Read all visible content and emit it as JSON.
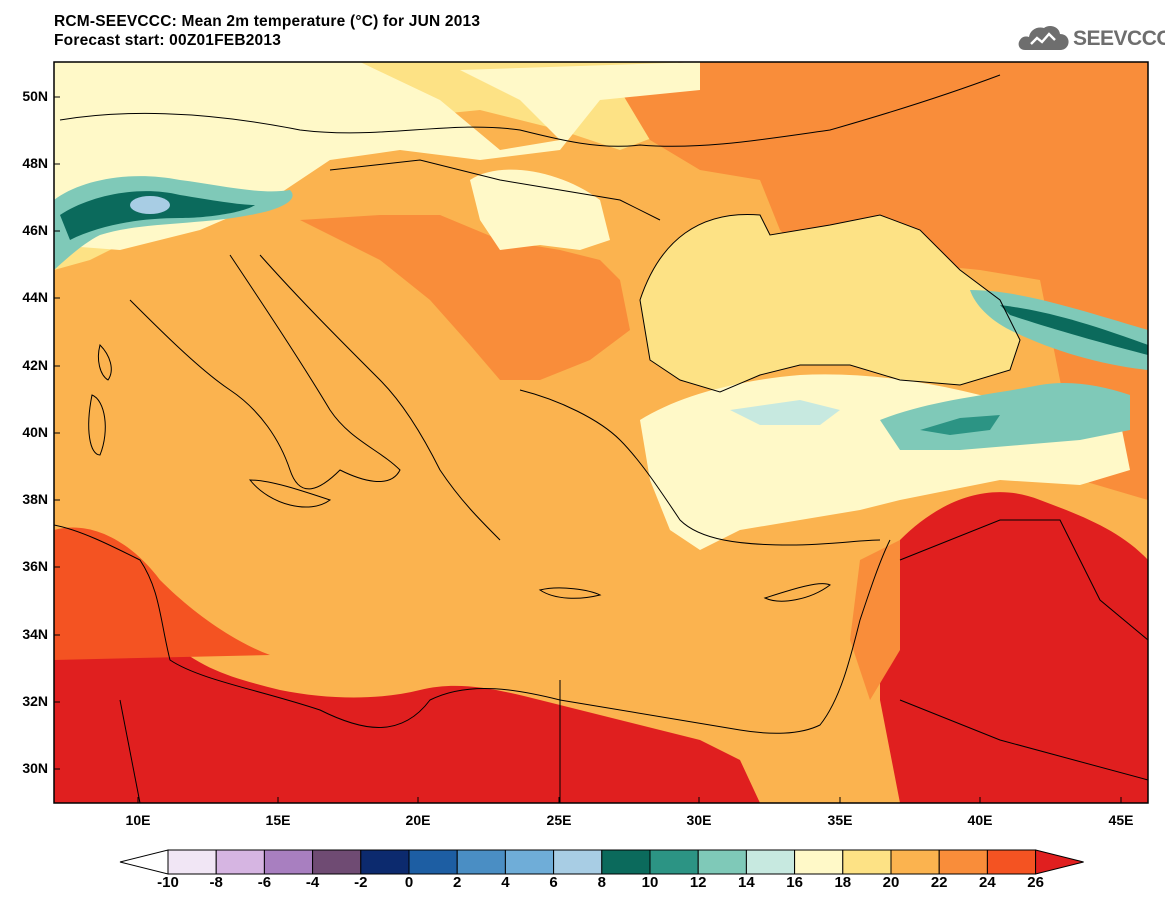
{
  "header": {
    "title_line1": "RCM-SEEVCCC: Mean 2m temperature (°C) for JUN 2013",
    "title_line2": "Forecast start: 00Z01FEB2013"
  },
  "logo": {
    "text": "SEEVCCC",
    "icon": "cloud-logo-icon"
  },
  "map": {
    "lat_labels": [
      "50N",
      "48N",
      "46N",
      "44N",
      "42N",
      "40N",
      "38N",
      "36N",
      "34N",
      "32N",
      "30N"
    ],
    "lon_labels": [
      "10E",
      "15E",
      "20E",
      "25E",
      "30E",
      "35E",
      "40E",
      "45E"
    ],
    "lat_range": [
      29,
      51
    ],
    "lon_range": [
      7,
      46
    ],
    "regions": [
      {
        "name": "background",
        "value": 21
      },
      {
        "name": "sahara",
        "value": 25
      },
      {
        "name": "arabia",
        "value": 25
      },
      {
        "name": "alps",
        "value": 11
      },
      {
        "name": "anatolia-plateau",
        "value": 17
      },
      {
        "name": "caucasus",
        "value": 11
      },
      {
        "name": "carpathians",
        "value": 17
      },
      {
        "name": "black-sea",
        "value": 19
      }
    ]
  },
  "colorbar": {
    "levels": [
      "-10",
      "-8",
      "-6",
      "-4",
      "-2",
      "0",
      "2",
      "4",
      "6",
      "8",
      "10",
      "12",
      "14",
      "16",
      "18",
      "20",
      "22",
      "24",
      "26"
    ],
    "under_color": "#ffffff",
    "over_color": "#e01f1f",
    "colors": [
      "#f1e6f5",
      "#d6b5e2",
      "#a87fc0",
      "#6f4b73",
      "#0c2a6e",
      "#1d5ea3",
      "#4a8ec4",
      "#6fadd8",
      "#a8cde4",
      "#0b6a5c",
      "#2c9484",
      "#7fc9b8",
      "#c7e9e0",
      "#fff9c8",
      "#fde285",
      "#fbb34f",
      "#f98d3a",
      "#f45322"
    ]
  }
}
